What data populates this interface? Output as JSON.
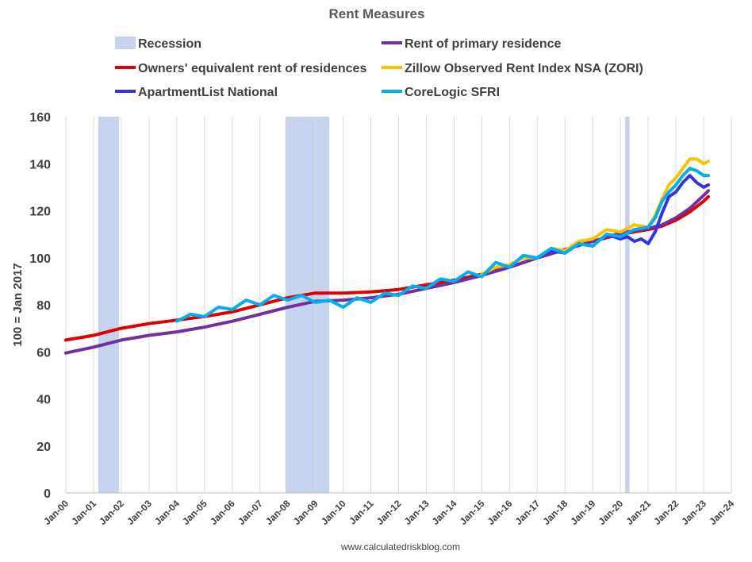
{
  "chart_data": {
    "type": "line",
    "title": "Rent Measures",
    "ylabel": "100 = Jan 2017",
    "xlabel": "",
    "source": "www.calculatedriskblog.com",
    "ylim": [
      0,
      160
    ],
    "xlim": [
      2000.0,
      2024.0
    ],
    "yticks": [
      "0",
      "20",
      "40",
      "60",
      "80",
      "100",
      "120",
      "140",
      "160"
    ],
    "xticks": [
      "Jan-00",
      "Jan-01",
      "Jan-02",
      "Jan-03",
      "Jan-04",
      "Jan-05",
      "Jan-06",
      "Jan-07",
      "Jan-08",
      "Jan-09",
      "Jan-10",
      "Jan-11",
      "Jan-12",
      "Jan-13",
      "Jan-14",
      "Jan-15",
      "Jan-16",
      "Jan-17",
      "Jan-18",
      "Jan-19",
      "Jan-20",
      "Jan-21",
      "Jan-22",
      "Jan-23",
      "Jan-24"
    ],
    "grid": "vertical",
    "legend_placement": "top",
    "recessions": [
      {
        "start": 2001.17,
        "end": 2001.92
      },
      {
        "start": 2007.92,
        "end": 2009.5
      },
      {
        "start": 2020.17,
        "end": 2020.33
      }
    ],
    "legend": [
      {
        "name": "Recession",
        "color": "#c5d3ee",
        "kind": "band"
      },
      {
        "name": "Rent of primary residence",
        "color": "#7030a0",
        "kind": "line"
      },
      {
        "name": "Owners' equivalent rent of residences",
        "color": "#e00000",
        "kind": "line"
      },
      {
        "name": "Zillow Observed Rent Index NSA (ZORI)",
        "color": "#ffc000",
        "kind": "line"
      },
      {
        "name": "ApartmentList National",
        "color": "#3333e0",
        "kind": "line"
      },
      {
        "name": "CoreLogic SFRI",
        "color": "#00b0f0",
        "kind": "line"
      }
    ],
    "series": [
      {
        "name": "Owners' equivalent rent of residences",
        "color": "#e00000",
        "x": [
          2000,
          2001,
          2002,
          2003,
          2004,
          2005,
          2006,
          2007,
          2008,
          2009,
          2010,
          2011,
          2012,
          2013,
          2014,
          2015,
          2016,
          2017,
          2018,
          2019,
          2020,
          2020.5,
          2021,
          2021.5,
          2022,
          2022.5,
          2023,
          2023.17
        ],
        "y": [
          65,
          67,
          70,
          72,
          73.5,
          75,
          77,
          80,
          83,
          85,
          85,
          85.5,
          86.5,
          88.5,
          90.5,
          93,
          96,
          100,
          103.5,
          107,
          110,
          111,
          112,
          113.5,
          116,
          119.5,
          124,
          126
        ]
      },
      {
        "name": "Rent of primary residence",
        "color": "#7030a0",
        "x": [
          2000,
          2001,
          2002,
          2003,
          2004,
          2005,
          2006,
          2007,
          2008,
          2009,
          2010,
          2011,
          2012,
          2013,
          2014,
          2015,
          2016,
          2017,
          2018,
          2019,
          2020,
          2020.5,
          2021,
          2021.5,
          2022,
          2022.5,
          2023,
          2023.17
        ],
        "y": [
          59.5,
          62,
          65,
          67,
          68.5,
          70.5,
          73,
          76,
          79,
          81.5,
          82,
          83,
          84.5,
          87,
          89.5,
          92.5,
          96,
          100,
          103.5,
          107,
          110.5,
          111.5,
          112.5,
          114,
          117,
          121,
          126.5,
          128.5
        ]
      },
      {
        "name": "Zillow Observed Rent Index NSA (ZORI)",
        "color": "#ffc000",
        "x": [
          2015,
          2015.5,
          2016,
          2016.5,
          2017,
          2017.5,
          2018,
          2018.5,
          2019,
          2019.5,
          2020,
          2020.5,
          2021,
          2021.25,
          2021.5,
          2021.75,
          2022,
          2022.25,
          2022.5,
          2022.75,
          2023,
          2023.17
        ],
        "y": [
          93,
          96,
          97,
          100,
          100,
          104,
          103,
          107,
          108,
          112,
          111,
          114,
          113,
          118,
          125,
          131,
          134,
          138,
          142,
          142,
          140,
          141
        ]
      },
      {
        "name": "ApartmentList National",
        "color": "#3333e0",
        "x": [
          2017,
          2017.5,
          2018,
          2018.5,
          2019,
          2019.5,
          2020,
          2020.25,
          2020.5,
          2020.75,
          2021,
          2021.25,
          2021.5,
          2021.75,
          2022,
          2022.25,
          2022.5,
          2022.75,
          2023,
          2023.17
        ],
        "y": [
          100,
          103,
          102,
          106,
          105,
          110,
          108,
          109,
          107,
          108,
          106,
          111,
          119,
          126,
          128,
          132,
          135,
          132,
          130,
          131
        ]
      },
      {
        "name": "CoreLogic SFRI",
        "color": "#00b0f0",
        "x": [
          2004,
          2004.5,
          2005,
          2005.5,
          2006,
          2006.5,
          2007,
          2007.5,
          2008,
          2008.5,
          2009,
          2009.5,
          2010,
          2010.5,
          2011,
          2011.5,
          2012,
          2012.5,
          2013,
          2013.5,
          2014,
          2014.5,
          2015,
          2015.5,
          2016,
          2016.5,
          2017,
          2017.5,
          2018,
          2018.5,
          2019,
          2019.5,
          2020,
          2020.5,
          2021,
          2021.25,
          2021.5,
          2021.75,
          2022,
          2022.25,
          2022.5,
          2022.75,
          2023,
          2023.17
        ],
        "y": [
          73,
          76,
          75,
          79,
          78,
          82,
          80,
          84,
          82,
          84,
          81,
          82,
          79,
          83,
          81,
          85,
          84,
          88,
          87,
          91,
          90,
          94,
          92,
          98,
          96,
          101,
          100,
          104,
          102,
          106,
          105,
          110,
          109,
          112,
          113,
          117,
          124,
          128,
          131,
          135,
          138,
          137,
          135,
          135
        ]
      }
    ]
  }
}
